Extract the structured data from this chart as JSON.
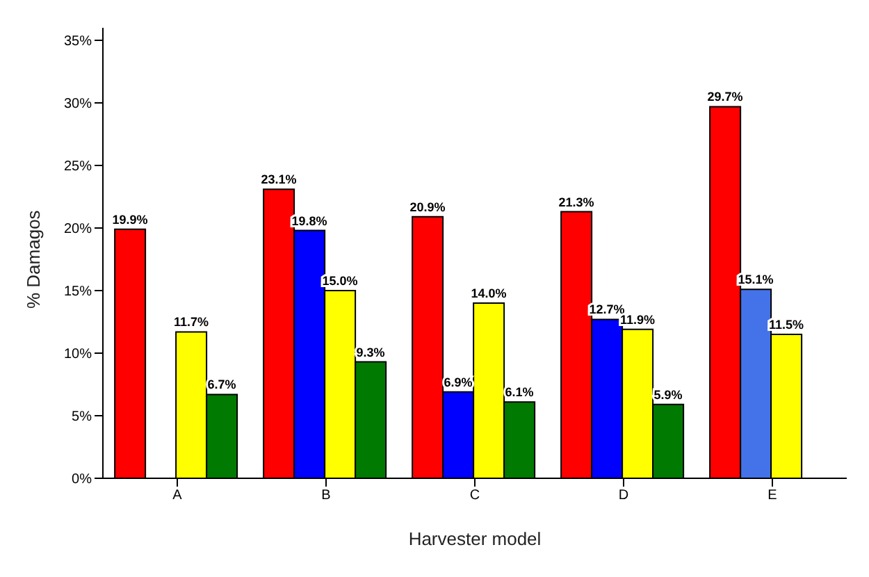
{
  "chart_data": {
    "type": "bar",
    "xlabel": "Harvester model",
    "ylabel": "% Damagos",
    "categories": [
      "A",
      "B",
      "C",
      "D",
      "E"
    ],
    "series": [
      {
        "color": "#ff0000",
        "values": [
          19.9,
          23.1,
          20.9,
          21.3,
          29.7
        ],
        "value_labels": [
          "19.9%",
          "23.1%",
          "20.9%",
          "21.3%",
          "29.7%"
        ]
      },
      {
        "color": "#0000ff",
        "colors": [
          "#0000ff",
          "#0000ff",
          "#0000ff",
          "#0000ff",
          "#4472e8"
        ],
        "values": [
          null,
          19.8,
          6.9,
          12.7,
          15.1
        ],
        "value_labels": [
          null,
          "19.8%",
          "6.9%",
          "12.7%",
          "15.1%"
        ]
      },
      {
        "color": "#ffff00",
        "values": [
          11.7,
          15.0,
          14.0,
          11.9,
          11.5
        ],
        "value_labels": [
          "11.7%",
          "15.0%",
          "14.0%",
          "11.9%",
          "11.5%"
        ]
      },
      {
        "color": "#007a00",
        "values": [
          6.7,
          9.3,
          6.1,
          5.9,
          null
        ],
        "value_labels": [
          "6.7%",
          "9.3%",
          "6.1%",
          "5.9%",
          null
        ]
      }
    ],
    "ylim": [
      0,
      36
    ],
    "yticks": [
      {
        "value": 0,
        "label": "0%"
      },
      {
        "value": 5,
        "label": "5%"
      },
      {
        "value": 10,
        "label": "10%"
      },
      {
        "value": 15,
        "label": "15%"
      },
      {
        "value": 20,
        "label": "20%"
      },
      {
        "value": 25,
        "label": "25%"
      },
      {
        "value": 30,
        "label": "30%"
      },
      {
        "value": 35,
        "label": "35%"
      }
    ],
    "grid": false,
    "legend": false
  }
}
